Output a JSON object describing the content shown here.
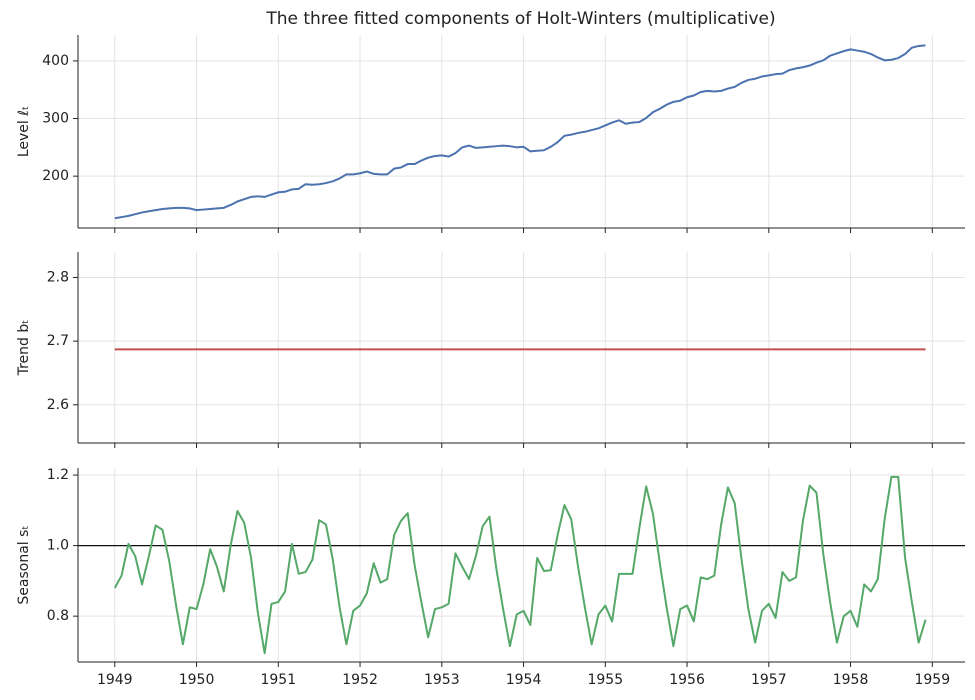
{
  "chart_data": [
    {
      "type": "line",
      "title": "The three fitted components of Holt-Winters (multiplicative)",
      "ylabel": "Level ℓₜ",
      "color": "#4c72b0",
      "grid": true,
      "xlim": [
        1948.55,
        1959.4
      ],
      "xticks": [
        1949,
        1950,
        1951,
        1952,
        1953,
        1954,
        1955,
        1956,
        1957,
        1958,
        1959
      ],
      "ylim": [
        110,
        445
      ],
      "yticks": [
        200,
        300,
        400
      ],
      "x": [
        1949,
        1949.083,
        1949.167,
        1949.25,
        1949.333,
        1949.417,
        1949.5,
        1949.583,
        1949.667,
        1949.75,
        1949.833,
        1949.917,
        1950,
        1950.083,
        1950.167,
        1950.25,
        1950.333,
        1950.417,
        1950.5,
        1950.583,
        1950.667,
        1950.75,
        1950.833,
        1950.917,
        1951,
        1951.083,
        1951.167,
        1951.25,
        1951.333,
        1951.417,
        1951.5,
        1951.583,
        1951.667,
        1951.75,
        1951.833,
        1951.917,
        1952,
        1952.083,
        1952.167,
        1952.25,
        1952.333,
        1952.417,
        1952.5,
        1952.583,
        1952.667,
        1952.75,
        1952.833,
        1952.917,
        1953,
        1953.083,
        1953.167,
        1953.25,
        1953.333,
        1953.417,
        1953.5,
        1953.583,
        1953.667,
        1953.75,
        1953.833,
        1953.917,
        1954,
        1954.083,
        1954.167,
        1954.25,
        1954.333,
        1954.417,
        1954.5,
        1954.583,
        1954.667,
        1954.75,
        1954.833,
        1954.917,
        1955,
        1955.083,
        1955.167,
        1955.25,
        1955.333,
        1955.417,
        1955.5,
        1955.583,
        1955.667,
        1955.75,
        1955.833,
        1955.917,
        1956,
        1956.083,
        1956.167,
        1956.25,
        1956.333,
        1956.417,
        1956.5,
        1956.583,
        1956.667,
        1956.75,
        1956.833,
        1956.917,
        1957,
        1957.083,
        1957.167,
        1957.25,
        1957.333,
        1957.417,
        1957.5,
        1957.583,
        1957.667,
        1957.75,
        1957.833,
        1957.917,
        1958,
        1958.083,
        1958.167,
        1958.25,
        1958.333,
        1958.417,
        1958.5,
        1958.583,
        1958.667,
        1958.75,
        1958.833,
        1958.917
      ],
      "values": [
        127,
        129,
        131,
        134,
        137,
        139,
        141,
        143,
        144,
        145,
        145,
        144,
        141,
        142,
        143,
        144,
        145,
        150,
        156,
        160,
        164,
        165,
        164,
        168,
        172,
        173,
        177,
        178,
        186,
        185,
        186,
        188,
        191,
        196,
        203,
        203,
        205,
        208,
        204,
        203,
        203,
        213,
        215,
        221,
        221,
        227,
        232,
        235,
        236,
        234,
        240,
        250,
        253,
        249,
        250,
        251,
        252,
        253,
        252,
        250,
        251,
        243,
        244,
        245,
        251,
        259,
        270,
        272,
        275,
        277,
        280,
        283,
        288,
        293,
        297,
        291,
        293,
        294,
        301,
        311,
        317,
        324,
        329,
        331,
        337,
        340,
        346,
        348,
        347,
        348,
        352,
        355,
        362,
        367,
        369,
        373,
        375,
        377,
        378,
        384,
        387,
        389,
        392,
        397,
        401,
        409,
        413,
        417,
        420,
        418,
        416,
        412,
        406,
        401,
        402,
        405,
        412,
        423,
        426,
        427
      ]
    },
    {
      "type": "line",
      "ylabel": "Trend bₜ",
      "color": "#c44e52",
      "grid": true,
      "xlim": [
        1948.55,
        1959.4
      ],
      "xticks": [
        1949,
        1950,
        1951,
        1952,
        1953,
        1954,
        1955,
        1956,
        1957,
        1958,
        1959
      ],
      "ylim": [
        2.54,
        2.84
      ],
      "yticks": [
        2.6,
        2.7,
        2.8
      ],
      "x": [
        1949,
        1949.083,
        1949.167,
        1949.25,
        1949.333,
        1949.417,
        1949.5,
        1949.583,
        1949.667,
        1949.75,
        1949.833,
        1949.917,
        1950,
        1950.083,
        1950.167,
        1950.25,
        1950.333,
        1950.417,
        1950.5,
        1950.583,
        1950.667,
        1950.75,
        1950.833,
        1950.917,
        1951,
        1951.083,
        1951.167,
        1951.25,
        1951.333,
        1951.417,
        1951.5,
        1951.583,
        1951.667,
        1951.75,
        1951.833,
        1951.917,
        1952,
        1952.083,
        1952.167,
        1952.25,
        1952.333,
        1952.417,
        1952.5,
        1952.583,
        1952.667,
        1952.75,
        1952.833,
        1952.917,
        1953,
        1953.083,
        1953.167,
        1953.25,
        1953.333,
        1953.417,
        1953.5,
        1953.583,
        1953.667,
        1953.75,
        1953.833,
        1953.917,
        1954,
        1954.083,
        1954.167,
        1954.25,
        1954.333,
        1954.417,
        1954.5,
        1954.583,
        1954.667,
        1954.75,
        1954.833,
        1954.917,
        1955,
        1955.083,
        1955.167,
        1955.25,
        1955.333,
        1955.417,
        1955.5,
        1955.583,
        1955.667,
        1955.75,
        1955.833,
        1955.917,
        1956,
        1956.083,
        1956.167,
        1956.25,
        1956.333,
        1956.417,
        1956.5,
        1956.583,
        1956.667,
        1956.75,
        1956.833,
        1956.917,
        1957,
        1957.083,
        1957.167,
        1957.25,
        1957.333,
        1957.417,
        1957.5,
        1957.583,
        1957.667,
        1957.75,
        1957.833,
        1957.917,
        1958,
        1958.083,
        1958.167,
        1958.25,
        1958.333,
        1958.417,
        1958.5,
        1958.583,
        1958.667,
        1958.75,
        1958.833,
        1958.917
      ],
      "values": [
        2.687,
        2.687,
        2.687,
        2.687,
        2.687,
        2.687,
        2.687,
        2.687,
        2.687,
        2.687,
        2.687,
        2.687,
        2.687,
        2.687,
        2.687,
        2.687,
        2.687,
        2.687,
        2.687,
        2.687,
        2.687,
        2.687,
        2.687,
        2.687,
        2.687,
        2.687,
        2.687,
        2.687,
        2.687,
        2.687,
        2.687,
        2.687,
        2.687,
        2.687,
        2.687,
        2.687,
        2.687,
        2.687,
        2.687,
        2.687,
        2.687,
        2.687,
        2.687,
        2.687,
        2.687,
        2.687,
        2.687,
        2.687,
        2.687,
        2.687,
        2.687,
        2.687,
        2.687,
        2.687,
        2.687,
        2.687,
        2.687,
        2.687,
        2.687,
        2.687,
        2.687,
        2.687,
        2.687,
        2.687,
        2.687,
        2.687,
        2.687,
        2.687,
        2.687,
        2.687,
        2.687,
        2.687,
        2.687,
        2.687,
        2.687,
        2.687,
        2.687,
        2.687,
        2.687,
        2.687,
        2.687,
        2.687,
        2.687,
        2.687,
        2.687,
        2.687,
        2.687,
        2.687,
        2.687,
        2.687,
        2.687,
        2.687,
        2.687,
        2.687,
        2.687,
        2.687,
        2.687,
        2.687,
        2.687,
        2.687,
        2.687,
        2.687,
        2.687,
        2.687,
        2.687,
        2.687,
        2.687,
        2.687,
        2.687,
        2.687,
        2.687,
        2.687,
        2.687,
        2.687,
        2.687,
        2.687,
        2.687,
        2.687,
        2.687,
        2.687
      ]
    },
    {
      "type": "line",
      "ylabel": "Seasonal sₜ",
      "color": "#55a868",
      "grid": true,
      "hline": 1,
      "xlim": [
        1948.55,
        1959.4
      ],
      "xticks": [
        1949,
        1950,
        1951,
        1952,
        1953,
        1954,
        1955,
        1956,
        1957,
        1958,
        1959
      ],
      "ylim": [
        0.67,
        1.22
      ],
      "yticks": [
        0.8,
        {
          "value": 1,
          "label": "1.0"
        },
        1.2
      ],
      "x": [
        1949,
        1949.083,
        1949.167,
        1949.25,
        1949.333,
        1949.417,
        1949.5,
        1949.583,
        1949.667,
        1949.75,
        1949.833,
        1949.917,
        1950,
        1950.083,
        1950.167,
        1950.25,
        1950.333,
        1950.417,
        1950.5,
        1950.583,
        1950.667,
        1950.75,
        1950.833,
        1950.917,
        1951,
        1951.083,
        1951.167,
        1951.25,
        1951.333,
        1951.417,
        1951.5,
        1951.583,
        1951.667,
        1951.75,
        1951.833,
        1951.917,
        1952,
        1952.083,
        1952.167,
        1952.25,
        1952.333,
        1952.417,
        1952.5,
        1952.583,
        1952.667,
        1952.75,
        1952.833,
        1952.917,
        1953,
        1953.083,
        1953.167,
        1953.25,
        1953.333,
        1953.417,
        1953.5,
        1953.583,
        1953.667,
        1953.75,
        1953.833,
        1953.917,
        1954,
        1954.083,
        1954.167,
        1954.25,
        1954.333,
        1954.417,
        1954.5,
        1954.583,
        1954.667,
        1954.75,
        1954.833,
        1954.917,
        1955,
        1955.083,
        1955.167,
        1955.25,
        1955.333,
        1955.417,
        1955.5,
        1955.583,
        1955.667,
        1955.75,
        1955.833,
        1955.917,
        1956,
        1956.083,
        1956.167,
        1956.25,
        1956.333,
        1956.417,
        1956.5,
        1956.583,
        1956.667,
        1956.75,
        1956.833,
        1956.917,
        1957,
        1957.083,
        1957.167,
        1957.25,
        1957.333,
        1957.417,
        1957.5,
        1957.583,
        1957.667,
        1957.75,
        1957.833,
        1957.917,
        1958,
        1958.083,
        1958.167,
        1958.25,
        1958.333,
        1958.417,
        1958.5,
        1958.583,
        1958.667,
        1958.75,
        1958.833,
        1958.917
      ],
      "values": [
        0.88,
        0.915,
        1.005,
        0.97,
        0.89,
        0.97,
        1.057,
        1.045,
        0.955,
        0.83,
        0.72,
        0.825,
        0.82,
        0.89,
        0.99,
        0.94,
        0.87,
        1.0,
        1.098,
        1.065,
        0.965,
        0.81,
        0.695,
        0.835,
        0.84,
        0.87,
        1.005,
        0.92,
        0.925,
        0.96,
        1.072,
        1.06,
        0.96,
        0.825,
        0.72,
        0.815,
        0.83,
        0.865,
        0.95,
        0.895,
        0.905,
        1.03,
        1.07,
        1.092,
        0.945,
        0.84,
        0.74,
        0.82,
        0.825,
        0.835,
        0.978,
        0.94,
        0.905,
        0.97,
        1.055,
        1.082,
        0.935,
        0.82,
        0.715,
        0.805,
        0.815,
        0.775,
        0.965,
        0.928,
        0.93,
        1.03,
        1.115,
        1.075,
        0.94,
        0.825,
        0.72,
        0.805,
        0.83,
        0.785,
        0.92,
        0.92,
        0.92,
        1.05,
        1.168,
        1.09,
        0.95,
        0.825,
        0.715,
        0.82,
        0.83,
        0.785,
        0.91,
        0.905,
        0.915,
        1.06,
        1.165,
        1.12,
        0.96,
        0.82,
        0.725,
        0.815,
        0.835,
        0.795,
        0.925,
        0.9,
        0.91,
        1.07,
        1.17,
        1.15,
        0.975,
        0.84,
        0.725,
        0.8,
        0.815,
        0.77,
        0.89,
        0.87,
        0.905,
        1.075,
        1.195,
        1.195,
        0.965,
        0.84,
        0.725,
        0.79
      ]
    }
  ]
}
